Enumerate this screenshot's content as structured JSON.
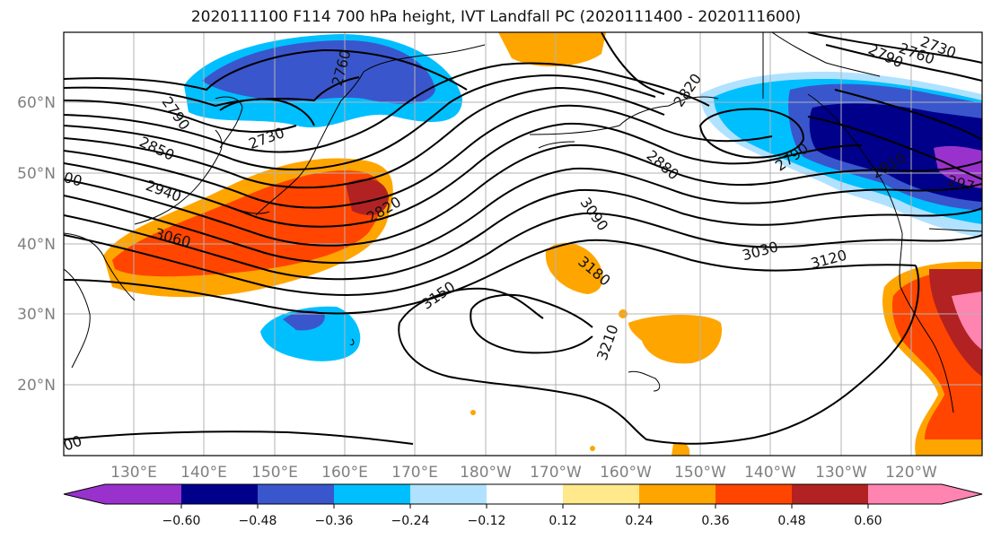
{
  "title": "2020111100 F114 700 hPa height, IVT Landfall PC (2020111400 - 2020111600)",
  "map": {
    "lat_labels": [
      "60°N",
      "50°N",
      "40°N",
      "30°N",
      "20°N"
    ],
    "lon_labels": [
      "130°E",
      "140°E",
      "150°E",
      "160°E",
      "170°E",
      "180°W",
      "170°W",
      "160°W",
      "150°W",
      "140°W",
      "130°W",
      "120°W"
    ],
    "contour_labels": [
      "2760",
      "2730",
      "2790",
      "2850",
      "2940",
      "3060",
      "2820",
      "2880",
      "3090",
      "3030",
      "3150",
      "3180",
      "3210",
      "3120",
      "2820",
      "2790",
      "2730",
      "2760",
      "2790",
      "2910",
      "297",
      "00",
      "00"
    ],
    "colors": {
      "very_neg": "#9932CC",
      "neg_060": "#00008B",
      "neg_048": "#3A56CC",
      "neg_036": "#00BFFF",
      "neg_024": "#B0E2FF",
      "neutral": "#FFFFFF",
      "pos_012": "#FFE98A",
      "pos_024": "#FFA500",
      "pos_036": "#FF4500",
      "pos_048": "#B22222",
      "pos_060": "#FF85B0"
    }
  },
  "colorbar": {
    "tick_labels": [
      "−0.60",
      "−0.48",
      "−0.36",
      "−0.24",
      "−0.12",
      "0.12",
      "0.24",
      "0.36",
      "0.48",
      "0.60"
    ],
    "bins": [
      "#9932CC",
      "#00008B",
      "#3A56CC",
      "#00BFFF",
      "#B0E2FF",
      "#FFFFFF",
      "#FFE98A",
      "#FFA500",
      "#FF4500",
      "#B22222",
      "#FF85B0"
    ]
  }
}
